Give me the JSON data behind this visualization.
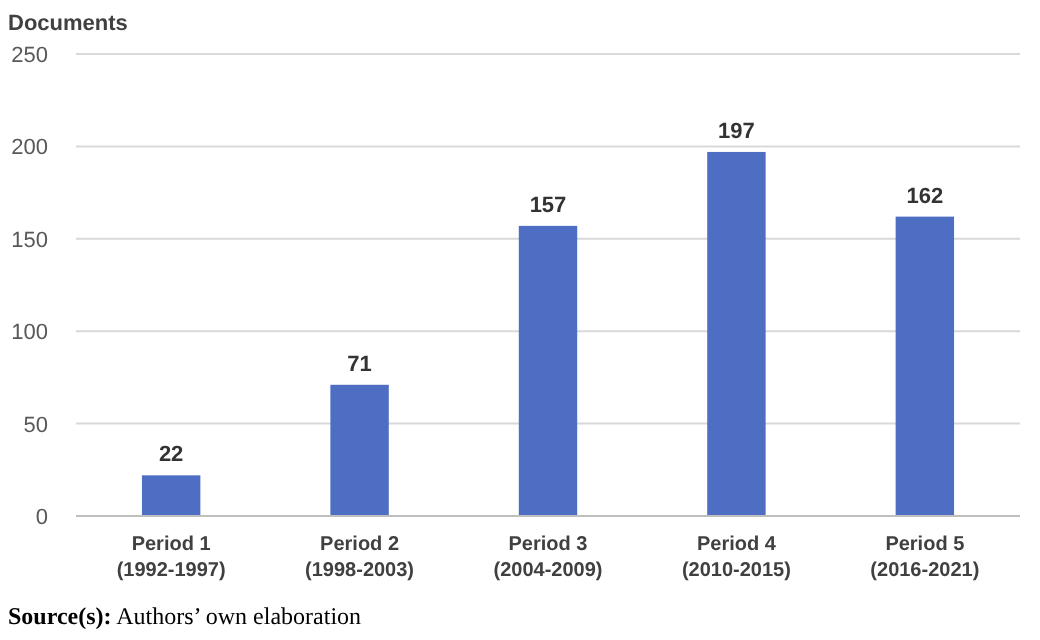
{
  "chart_data": {
    "type": "bar",
    "ylabel": "Documents",
    "categories": [
      "Period 1\n(1992-1997)",
      "Period 2\n(1998-2003)",
      "Period 3\n(2004-2009)",
      "Period 4\n(2010-2015)",
      "Period 5\n(2016-2021)"
    ],
    "values": [
      22,
      71,
      157,
      197,
      162
    ],
    "color": "#4e6ec4",
    "ylim": [
      0,
      250
    ],
    "yticks": [
      0,
      50,
      100,
      150,
      200,
      250
    ],
    "grid": "y",
    "data_labels": true,
    "annotations": [
      "Source(s): Authors’ own elaboration"
    ]
  }
}
